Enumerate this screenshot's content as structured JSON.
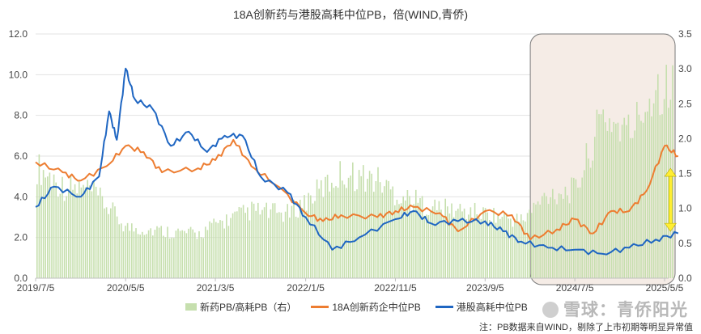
{
  "chart_data": {
    "type": "bar+line",
    "title": "18A创新药与港股高耗中位PB，倍(WIND,青侨)",
    "xlabel": "",
    "ylabel": "",
    "x_ticks": [
      "2019/7/5",
      "2020/5/5",
      "2021/3/5",
      "2022/1/5",
      "2022/11/5",
      "2023/9/5",
      "2024/7/5",
      "2025/5/5"
    ],
    "y_left": {
      "min": 0,
      "max": 12,
      "ticks": [
        "0.0",
        "2.0",
        "4.0",
        "6.0",
        "8.0",
        "10.0",
        "12.0"
      ]
    },
    "y_right": {
      "min": 0,
      "max": 3.5,
      "ticks": [
        "0.0",
        "0.5",
        "1.0",
        "1.5",
        "2.0",
        "2.5",
        "3.0",
        "3.5"
      ]
    },
    "grid": "horizontal",
    "legend_position": "bottom",
    "series": [
      {
        "name": "新药PB/高耗PB（右）",
        "type": "bar",
        "axis": "right",
        "color": "#c6dfae",
        "points": [
          [
            "2019/7/5",
            1.65
          ],
          [
            "2019/10/5",
            1.35
          ],
          [
            "2020/1/5",
            1.3
          ],
          [
            "2020/3/5",
            1.05
          ],
          [
            "2020/5/5",
            0.75
          ],
          [
            "2020/9/5",
            0.7
          ],
          [
            "2021/1/5",
            0.65
          ],
          [
            "2021/3/5",
            0.8
          ],
          [
            "2021/7/5",
            1.0
          ],
          [
            "2021/11/5",
            0.95
          ],
          [
            "2022/1/5",
            1.15
          ],
          [
            "2022/5/5",
            1.55
          ],
          [
            "2022/9/5",
            1.45
          ],
          [
            "2022/11/5",
            1.25
          ],
          [
            "2023/3/5",
            1.05
          ],
          [
            "2023/6/5",
            1.0
          ],
          [
            "2023/9/5",
            0.95
          ],
          [
            "2024/1/5",
            0.85
          ],
          [
            "2024/4/5",
            1.25
          ],
          [
            "2024/7/5",
            1.3
          ],
          [
            "2024/10/5",
            2.4
          ],
          [
            "2025/1/5",
            2.15
          ],
          [
            "2025/4/5",
            2.85
          ],
          [
            "2025/6/5",
            2.8
          ]
        ]
      },
      {
        "name": "18A创新药企中位PB",
        "type": "line",
        "axis": "left",
        "color": "#ed7d31",
        "points": [
          [
            "2019/7/5",
            5.7
          ],
          [
            "2019/10/5",
            5.2
          ],
          [
            "2019/12/5",
            4.8
          ],
          [
            "2020/3/1",
            5.5
          ],
          [
            "2020/5/5",
            6.5
          ],
          [
            "2020/7/5",
            6.2
          ],
          [
            "2020/9/5",
            5.2
          ],
          [
            "2021/1/5",
            5.4
          ],
          [
            "2021/3/5",
            5.8
          ],
          [
            "2021/5/5",
            6.8
          ],
          [
            "2021/7/5",
            5.5
          ],
          [
            "2021/10/5",
            4.5
          ],
          [
            "2022/1/5",
            3.2
          ],
          [
            "2022/3/5",
            2.8
          ],
          [
            "2022/5/5",
            3.1
          ],
          [
            "2022/9/5",
            3.0
          ],
          [
            "2022/11/5",
            3.3
          ],
          [
            "2023/1/5",
            3.5
          ],
          [
            "2023/4/5",
            3.2
          ],
          [
            "2023/6/5",
            2.3
          ],
          [
            "2023/9/5",
            3.3
          ],
          [
            "2023/12/5",
            3.1
          ],
          [
            "2024/2/5",
            1.9
          ],
          [
            "2024/5/5",
            2.4
          ],
          [
            "2024/7/5",
            2.9
          ],
          [
            "2024/9/5",
            2.2
          ],
          [
            "2024/11/5",
            3.3
          ],
          [
            "2025/1/5",
            3.3
          ],
          [
            "2025/3/5",
            4.3
          ],
          [
            "2025/5/5",
            6.5
          ],
          [
            "2025/6/20",
            6.0
          ]
        ]
      },
      {
        "name": "港股高耗中位PB",
        "type": "line",
        "axis": "left",
        "color": "#1f66c2",
        "points": [
          [
            "2019/7/5",
            3.5
          ],
          [
            "2019/9/5",
            4.5
          ],
          [
            "2019/12/5",
            4.0
          ],
          [
            "2020/2/5",
            5.0
          ],
          [
            "2020/3/10",
            8.2
          ],
          [
            "2020/4/5",
            6.8
          ],
          [
            "2020/5/5",
            10.3
          ],
          [
            "2020/6/5",
            8.8
          ],
          [
            "2020/8/5",
            8.3
          ],
          [
            "2020/10/5",
            6.5
          ],
          [
            "2020/12/5",
            7.2
          ],
          [
            "2021/2/5",
            6.2
          ],
          [
            "2021/4/5",
            7.0
          ],
          [
            "2021/6/5",
            7.0
          ],
          [
            "2021/8/5",
            5.0
          ],
          [
            "2021/11/5",
            4.2
          ],
          [
            "2022/1/5",
            3.0
          ],
          [
            "2022/4/5",
            1.4
          ],
          [
            "2022/7/5",
            2.0
          ],
          [
            "2022/11/5",
            2.9
          ],
          [
            "2023/1/5",
            3.3
          ],
          [
            "2023/3/5",
            2.7
          ],
          [
            "2023/6/5",
            2.8
          ],
          [
            "2023/9/5",
            2.8
          ],
          [
            "2023/11/5",
            2.3
          ],
          [
            "2024/1/5",
            1.8
          ],
          [
            "2024/4/5",
            1.5
          ],
          [
            "2024/7/5",
            1.4
          ],
          [
            "2024/10/5",
            1.2
          ],
          [
            "2025/1/5",
            1.5
          ],
          [
            "2025/4/5",
            1.9
          ],
          [
            "2025/6/20",
            2.2
          ]
        ]
      }
    ],
    "annotations": {
      "highlight_start": "2024/2/5",
      "highlight_end": "2025/6/20",
      "double_arrow_x": "2025/6/5",
      "double_arrow_y": [
        2.3,
        5.4
      ],
      "highlight_fill": "#f5ece6",
      "arrow_color": "#ffee33"
    }
  },
  "note": "注：PB数据来自WIND，剔除了上市初期等明显异常值",
  "watermark": "雪球：青侨阳光"
}
